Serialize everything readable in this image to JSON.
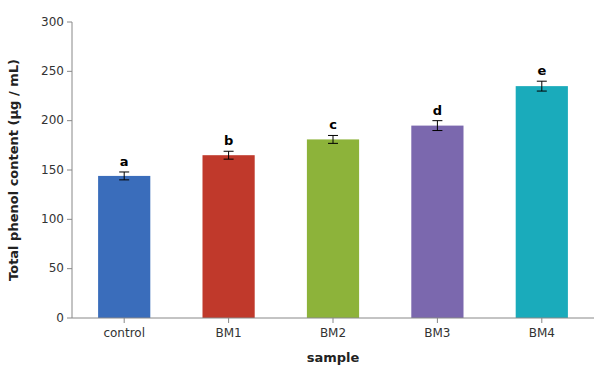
{
  "chart_data": {
    "type": "bar",
    "categories": [
      "control",
      "BM1",
      "BM2",
      "BM3",
      "BM4"
    ],
    "values": [
      144,
      165,
      181,
      195,
      235
    ],
    "errors": [
      4,
      4,
      4,
      5,
      5
    ],
    "colors": [
      "#3a6dbb",
      "#c0392b",
      "#8db33a",
      "#7b68ae",
      "#1aabbb"
    ],
    "annotations": [
      "a",
      "b",
      "c",
      "d",
      "e"
    ],
    "ylabel": "Total phenol content (μg / mL)",
    "xlabel": "sample",
    "ylim": [
      0,
      300
    ],
    "yticks": [
      0,
      50,
      100,
      150,
      200,
      250,
      300
    ],
    "grid": false
  }
}
